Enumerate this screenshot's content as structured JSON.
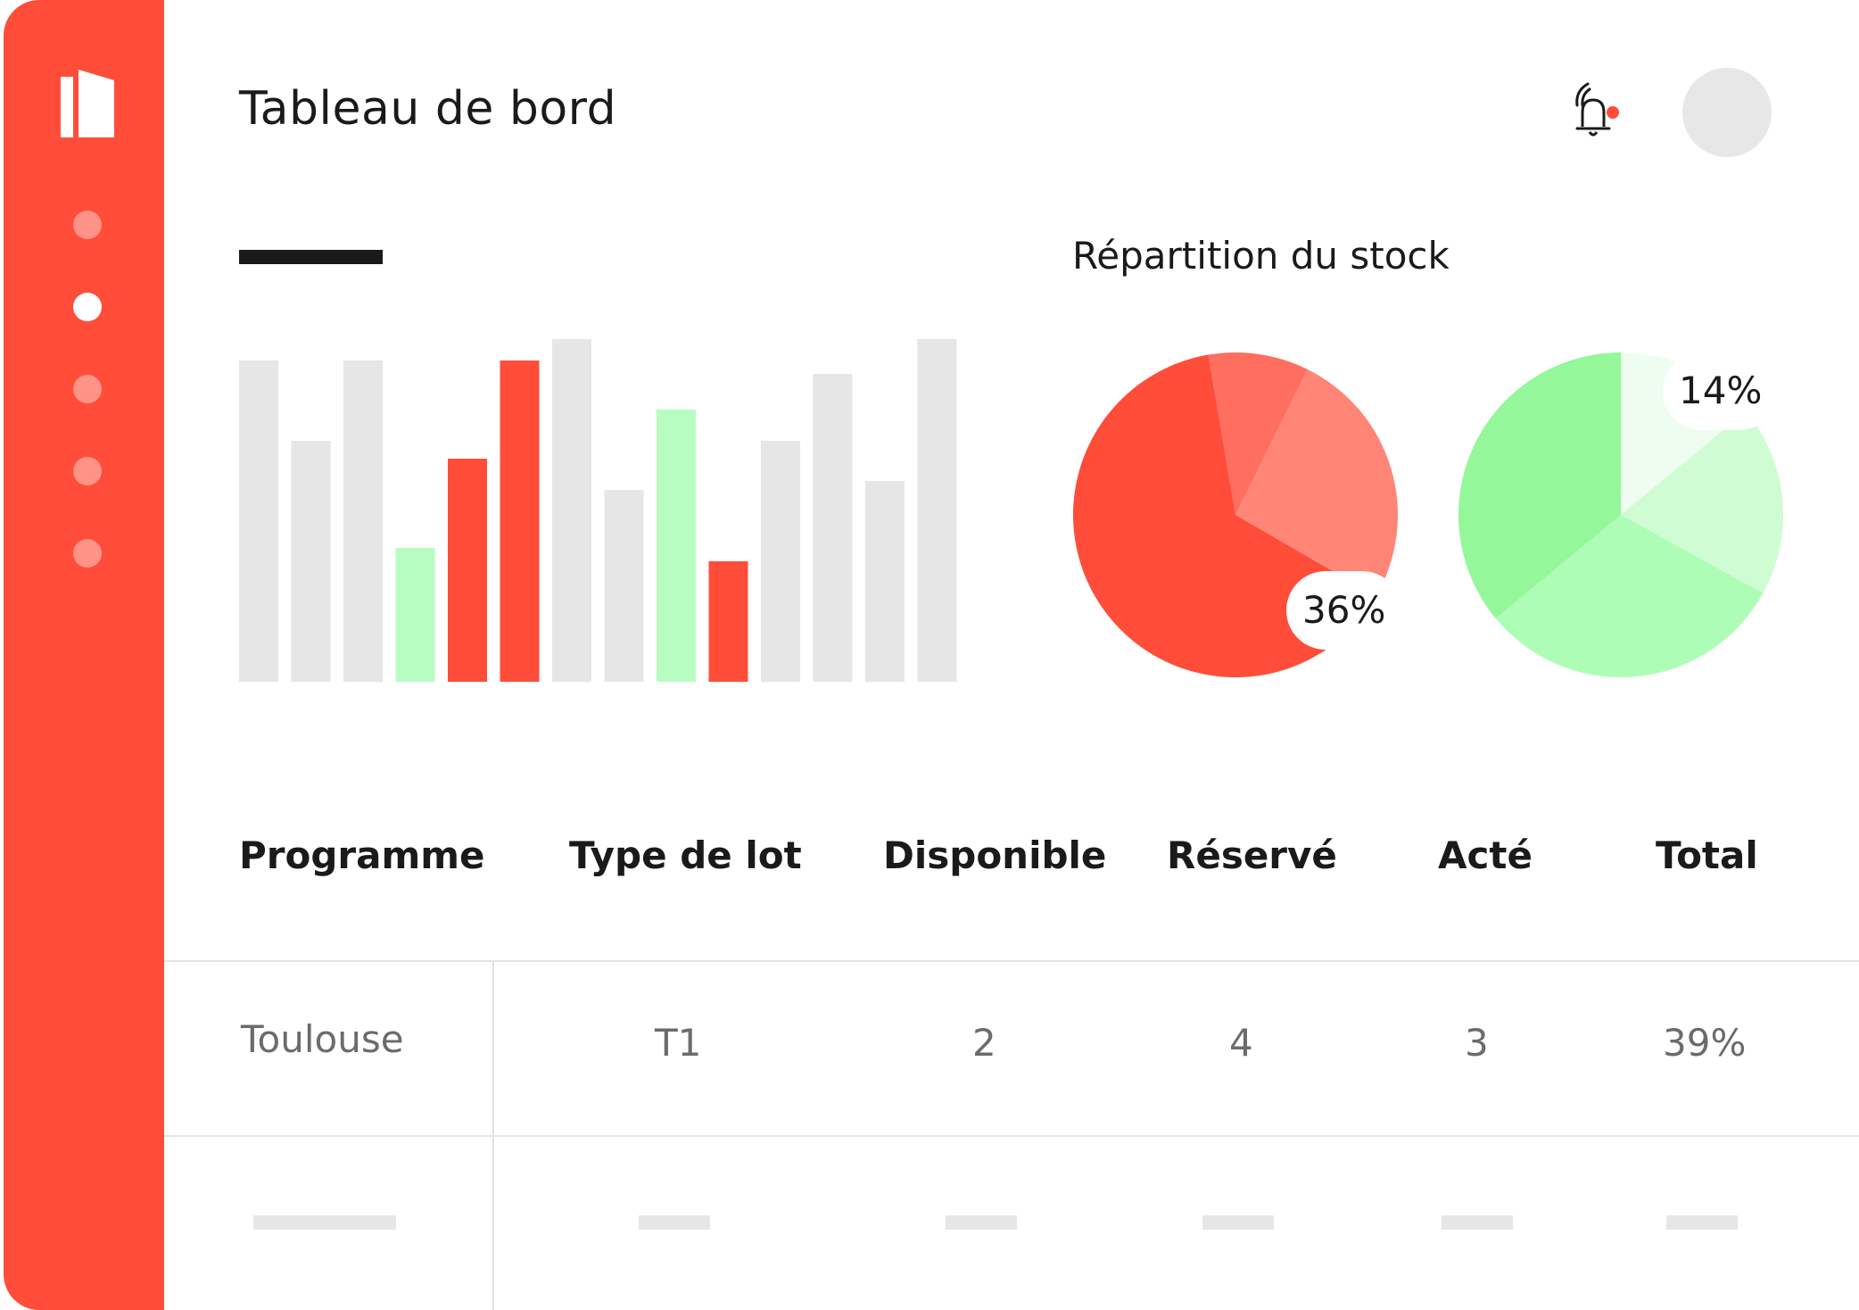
{
  "header": {
    "title": "Tableau de bord"
  },
  "colors": {
    "accent": "#ff4d3a",
    "accent_soft": "#ff8476",
    "green": "#94f79a",
    "grey": "#e6e6e6"
  },
  "sidebar": {
    "items": [
      {
        "name": "nav-dot-1",
        "active": false
      },
      {
        "name": "nav-dot-2",
        "active": true
      },
      {
        "name": "nav-dot-3",
        "active": false
      },
      {
        "name": "nav-dot-4",
        "active": false
      },
      {
        "name": "nav-dot-5",
        "active": false
      }
    ]
  },
  "icons": {
    "logo": "building-logo-icon",
    "notification": "bell-icon"
  },
  "chart_data": [
    {
      "type": "bar",
      "title": "",
      "values": [
        72,
        54,
        72,
        30,
        50,
        72,
        89,
        43,
        61,
        27,
        54,
        69,
        45,
        77
      ],
      "colors": [
        "grey",
        "grey",
        "grey",
        "green",
        "red",
        "red",
        "grey",
        "grey",
        "green",
        "red",
        "grey",
        "grey",
        "grey",
        "grey"
      ],
      "ylim": [
        0,
        100
      ]
    },
    {
      "type": "pie",
      "title": "Répartition du stock",
      "values": [
        64,
        10,
        26
      ],
      "colors": [
        "#ff4d3a",
        "#ff6e5f",
        "#ff8576"
      ],
      "label": "36%"
    },
    {
      "type": "pie",
      "values": [
        14,
        19,
        31,
        36
      ],
      "colors": [
        "#effdf0",
        "#d0fcd3",
        "#aefdb6",
        "#94f79a"
      ],
      "label": "14%"
    }
  ],
  "table": {
    "columns": [
      "Programme",
      "Type de lot",
      "Disponible",
      "Réservé",
      "Acté",
      "Total"
    ],
    "rows": [
      [
        "Toulouse",
        "T1",
        "2",
        "4",
        "3",
        "39%"
      ]
    ]
  }
}
